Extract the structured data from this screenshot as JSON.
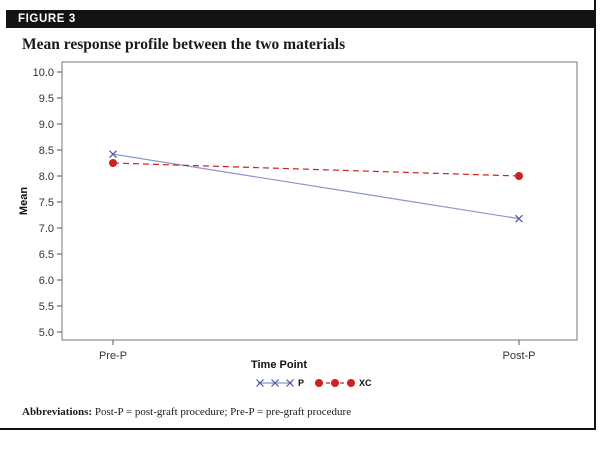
{
  "figure_label": "FIGURE 3",
  "footnote": {
    "bold": "Abbreviations:",
    "text": " Post-P = post-graft procedure; Pre-P = pre-graft procedure"
  },
  "colors": {
    "series_P": "#8a96c8",
    "series_XC": "#cc2222",
    "axis": "#555555"
  },
  "chart_data": {
    "type": "line",
    "title": "Mean response profile between the two materials",
    "xlabel": "Time Point",
    "ylabel": "Mean",
    "categories": [
      "Pre-P",
      "Post-P"
    ],
    "ylim": [
      5.0,
      10.0
    ],
    "yticks": [
      "5.0",
      "5.5",
      "6.0",
      "6.5",
      "7.0",
      "7.5",
      "8.0",
      "8.5",
      "9.0",
      "9.5",
      "10.0"
    ],
    "series": [
      {
        "name": "P",
        "values": [
          8.42,
          7.18
        ],
        "marker": "x",
        "line": "solid"
      },
      {
        "name": "XC",
        "values": [
          8.25,
          8.0
        ],
        "marker": "circle",
        "line": "dashed"
      }
    ],
    "legend_position": "bottom"
  }
}
